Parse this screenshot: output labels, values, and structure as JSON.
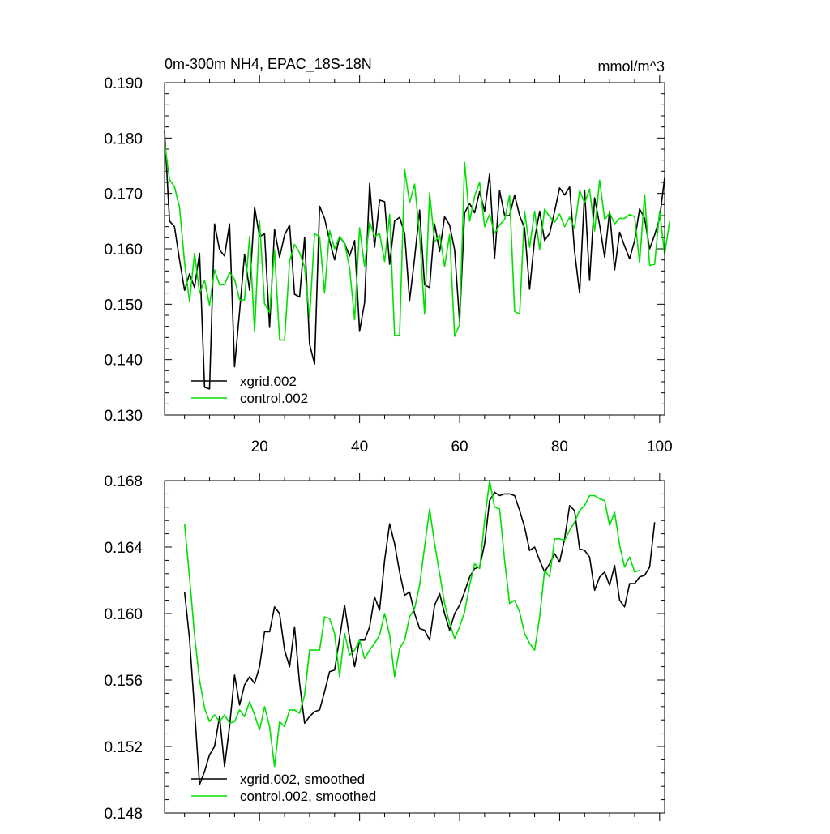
{
  "chart_data": [
    {
      "type": "line",
      "title": "0m-300m NH4, EPAC_18S-18N",
      "units": "mmol/m^3",
      "xlabel": "",
      "ylabel": "",
      "xlim": [
        1,
        101
      ],
      "ylim": [
        0.13,
        0.19
      ],
      "x_ticks": [
        20,
        40,
        60,
        80,
        100
      ],
      "y_ticks": [
        0.13,
        0.14,
        0.15,
        0.16,
        0.17,
        0.18,
        0.19
      ],
      "y_tick_labels": [
        "0.130",
        "0.140",
        "0.150",
        "0.160",
        "0.170",
        "0.180",
        "0.190"
      ],
      "x_start": 1,
      "legend_position": "bottom-left",
      "series": [
        {
          "name": "xgrid.002",
          "color": "#000000",
          "values": [
            0.1812,
            0.165,
            0.164,
            0.158,
            0.1525,
            0.1555,
            0.153,
            0.1592,
            0.135,
            0.1347,
            0.1645,
            0.1598,
            0.1587,
            0.1645,
            0.1387,
            0.1487,
            0.159,
            0.1525,
            0.1675,
            0.1622,
            0.1627,
            0.1458,
            0.1635,
            0.1585,
            0.1625,
            0.1643,
            0.1518,
            0.1513,
            0.1621,
            0.1428,
            0.1392,
            0.1677,
            0.1655,
            0.1615,
            0.158,
            0.1622,
            0.161,
            0.1587,
            0.1615,
            0.1451,
            0.1503,
            0.1718,
            0.1603,
            0.1688,
            0.1685,
            0.1572,
            0.165,
            0.1657,
            0.1628,
            0.1507,
            0.1583,
            0.167,
            0.1535,
            0.153,
            0.1645,
            0.1595,
            0.1658,
            0.1643,
            0.1598,
            0.1468,
            0.1665,
            0.1682,
            0.1665,
            0.1703,
            0.1668,
            0.1735,
            0.1583,
            0.1705,
            0.166,
            0.166,
            0.1697,
            0.166,
            0.1637,
            0.1527,
            0.1618,
            0.1668,
            0.1615,
            0.1628,
            0.1668,
            0.171,
            0.1697,
            0.1712,
            0.1595,
            0.152,
            0.1705,
            0.1543,
            0.1692,
            0.1643,
            0.1585,
            0.1668,
            0.1562,
            0.163,
            0.1605,
            0.1582,
            0.1615,
            0.1672,
            0.1655,
            0.16,
            0.1625,
            0.1655,
            0.1728
          ]
        },
        {
          "name": "control.002",
          "color": "#00e000",
          "values": [
            0.1792,
            0.1725,
            0.1712,
            0.1675,
            0.1575,
            0.1505,
            0.1592,
            0.152,
            0.1543,
            0.1498,
            0.1562,
            0.1535,
            0.1535,
            0.1557,
            0.1545,
            0.1508,
            0.1508,
            0.1622,
            0.145,
            0.165,
            0.1501,
            0.1485,
            0.1598,
            0.1436,
            0.1435,
            0.1578,
            0.1608,
            0.1593,
            0.1567,
            0.1475,
            0.1627,
            0.1622,
            0.152,
            0.1633,
            0.16,
            0.1622,
            0.1611,
            0.1565,
            0.1472,
            0.1638,
            0.1568,
            0.1648,
            0.1622,
            0.1628,
            0.1577,
            0.1662,
            0.1443,
            0.1444,
            0.1744,
            0.1683,
            0.1717,
            0.1625,
            0.1482,
            0.1701,
            0.1612,
            0.1625,
            0.1568,
            0.1626,
            0.1442,
            0.1463,
            0.1756,
            0.165,
            0.1695,
            0.172,
            0.164,
            0.1662,
            0.1628,
            0.1643,
            0.1653,
            0.1697,
            0.1487,
            0.1482,
            0.1668,
            0.1603,
            0.1668,
            0.1598,
            0.1672,
            0.1658,
            0.1648,
            0.1663,
            0.164,
            0.1657,
            0.1637,
            0.1705,
            0.1683,
            0.1708,
            0.1632,
            0.1724,
            0.1653,
            0.1665,
            0.1645,
            0.1655,
            0.1655,
            0.1662,
            0.1658,
            0.1575,
            0.1698,
            0.157,
            0.1572,
            0.1668,
            0.159,
            0.165
          ]
        }
      ]
    },
    {
      "type": "line",
      "title": "",
      "xlabel": "",
      "ylabel": "",
      "xlim": [
        1,
        101
      ],
      "ylim": [
        0.148,
        0.168
      ],
      "x_ticks": [
        20,
        40,
        60,
        80,
        100
      ],
      "y_ticks": [
        0.148,
        0.152,
        0.156,
        0.16,
        0.164,
        0.168
      ],
      "y_tick_labels": [
        "0.148",
        "0.152",
        "0.156",
        "0.160",
        "0.164",
        "0.168"
      ],
      "x_start": 5,
      "legend_position": "bottom-left",
      "series": [
        {
          "name": "xgrid.002, smoothed",
          "color": "#000000",
          "values": [
            0.1613,
            0.1585,
            0.1542,
            0.1497,
            0.1505,
            0.1515,
            0.152,
            0.1538,
            0.1508,
            0.1532,
            0.1563,
            0.1545,
            0.1557,
            0.1562,
            0.1558,
            0.1568,
            0.1589,
            0.1589,
            0.1604,
            0.16,
            0.1578,
            0.1568,
            0.1592,
            0.1558,
            0.1534,
            0.1538,
            0.1541,
            0.1542,
            0.1553,
            0.1565,
            0.1566,
            0.1585,
            0.1605,
            0.1585,
            0.1568,
            0.1584,
            0.1584,
            0.1592,
            0.161,
            0.1602,
            0.1632,
            0.1654,
            0.1642,
            0.1625,
            0.1611,
            0.1613,
            0.16,
            0.1591,
            0.159,
            0.1584,
            0.1605,
            0.1612,
            0.16,
            0.159,
            0.16,
            0.1605,
            0.1613,
            0.1622,
            0.1627,
            0.1628,
            0.1642,
            0.1668,
            0.1673,
            0.1671,
            0.1672,
            0.1672,
            0.1671,
            0.1662,
            0.1652,
            0.1638,
            0.164,
            0.1632,
            0.1625,
            0.163,
            0.1636,
            0.1631,
            0.1645,
            0.1665,
            0.1662,
            0.1639,
            0.1638,
            0.1634,
            0.1614,
            0.1622,
            0.1625,
            0.1617,
            0.1629,
            0.1608,
            0.1604,
            0.1618,
            0.1618,
            0.1622,
            0.1623,
            0.1628,
            0.1655
          ]
        },
        {
          "name": "control.002, smoothed",
          "color": "#00e000",
          "values": [
            0.1654,
            0.1622,
            0.1587,
            0.156,
            0.1543,
            0.1535,
            0.1539,
            0.1535,
            0.1539,
            0.1534,
            0.1535,
            0.1542,
            0.1538,
            0.1547,
            0.1539,
            0.153,
            0.1544,
            0.1532,
            0.1508,
            0.1535,
            0.1532,
            0.1542,
            0.1542,
            0.154,
            0.1551,
            0.1578,
            0.1578,
            0.1578,
            0.1598,
            0.1597,
            0.1588,
            0.1562,
            0.1588,
            0.1575,
            0.1578,
            0.1584,
            0.1573,
            0.1578,
            0.1582,
            0.1587,
            0.16,
            0.1587,
            0.1562,
            0.1579,
            0.1584,
            0.1598,
            0.1603,
            0.1617,
            0.164,
            0.1663,
            0.1642,
            0.1624,
            0.1606,
            0.1594,
            0.1585,
            0.1592,
            0.1601,
            0.1617,
            0.163,
            0.1627,
            0.1656,
            0.168,
            0.1664,
            0.1663,
            0.1632,
            0.1606,
            0.1608,
            0.1601,
            0.1588,
            0.1582,
            0.1578,
            0.1598,
            0.1626,
            0.1622,
            0.1645,
            0.1645,
            0.1644,
            0.165,
            0.1655,
            0.1662,
            0.1665,
            0.1671,
            0.1671,
            0.1669,
            0.1668,
            0.1653,
            0.1661,
            0.1641,
            0.1628,
            0.1634,
            0.1625,
            0.1626
          ]
        }
      ]
    }
  ]
}
